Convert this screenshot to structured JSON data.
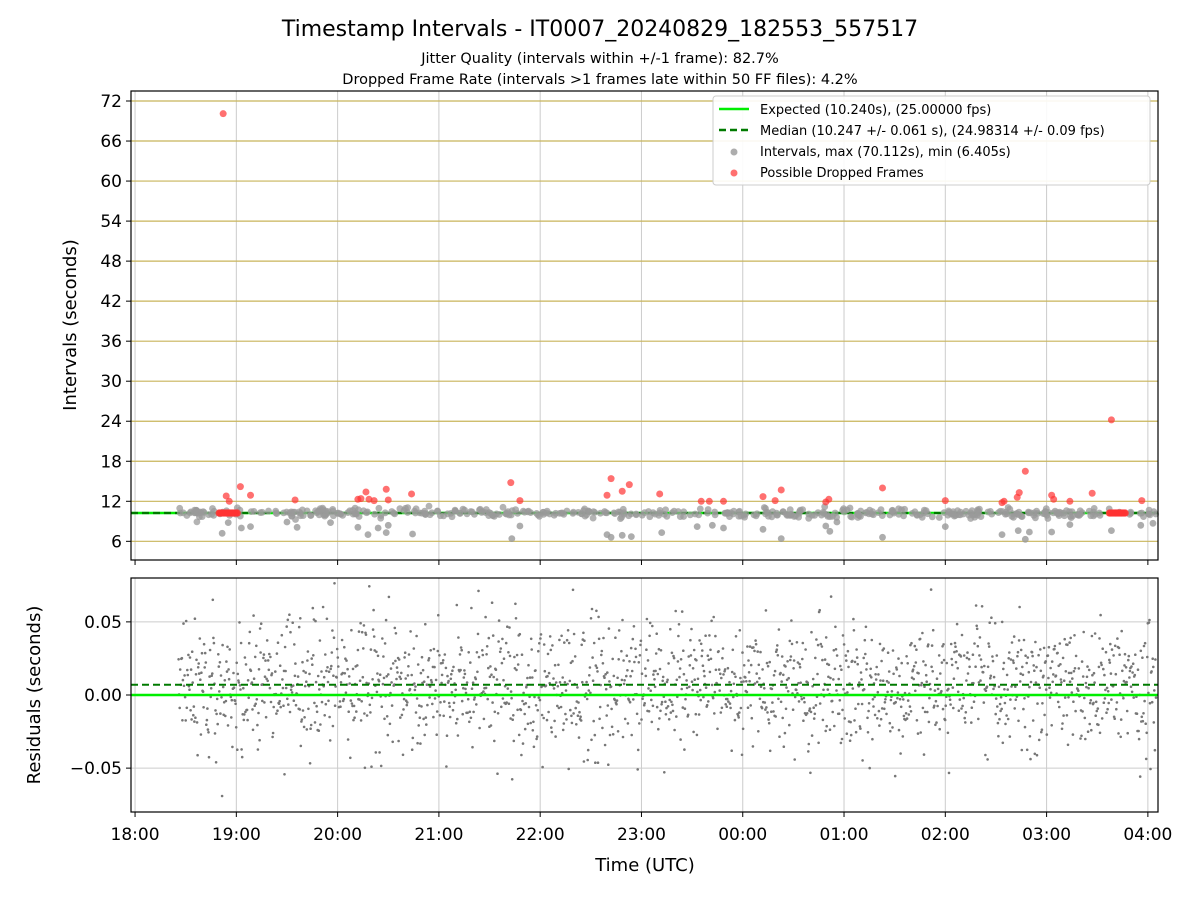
{
  "chart_data": [
    {
      "type": "scatter",
      "title": "Timestamp Intervals - IT0007_20240829_182553_557517",
      "subtitle_lines": [
        "Jitter Quality (intervals within +/-1 frame): 82.7%",
        "Dropped Frame Rate (intervals >1 frames late within 50 FF files): 4.2%"
      ],
      "ylabel": "Intervals (seconds)",
      "ylim": [
        3.2,
        73.5
      ],
      "yticks": [
        "6",
        "12",
        "18",
        "24",
        "30",
        "36",
        "42",
        "48",
        "54",
        "60",
        "66",
        "72"
      ],
      "ytick_values": [
        6,
        12,
        18,
        24,
        30,
        36,
        42,
        48,
        54,
        60,
        66,
        72
      ],
      "grid": "on",
      "hgrid_color": "#c8b45a",
      "vgrid_color": "#cccccc",
      "legend_placement": "top-right",
      "legend": [
        {
          "label": "Expected (10.240s), (25.00000 fps)",
          "kind": "line",
          "color": "#00ee00"
        },
        {
          "label": "Median (10.247 +/- 0.061 s), (24.98314 +/- 0.09 fps)",
          "kind": "dashed-line",
          "color": "#007a00"
        },
        {
          "label": "Intervals, max (70.112s), min (6.405s)",
          "kind": "marker",
          "color": "#999999"
        },
        {
          "label": "Possible Dropped Frames",
          "kind": "marker",
          "color": "#ff3333"
        }
      ],
      "expected_interval": 10.24,
      "median_interval": 10.247,
      "dropped_frames": [
        {
          "time_h": 18.87,
          "value": 70.1
        },
        {
          "time_h": 18.9,
          "value": 12.8
        },
        {
          "time_h": 18.93,
          "value": 12.0
        },
        {
          "time_h": 19.04,
          "value": 14.2
        },
        {
          "time_h": 19.14,
          "value": 12.9
        },
        {
          "time_h": 19.58,
          "value": 12.2
        },
        {
          "time_h": 20.2,
          "value": 12.3
        },
        {
          "time_h": 20.23,
          "value": 12.4
        },
        {
          "time_h": 20.28,
          "value": 13.4
        },
        {
          "time_h": 20.31,
          "value": 12.3
        },
        {
          "time_h": 20.36,
          "value": 12.1
        },
        {
          "time_h": 20.48,
          "value": 13.8
        },
        {
          "time_h": 20.5,
          "value": 12.2
        },
        {
          "time_h": 20.73,
          "value": 13.1
        },
        {
          "time_h": 21.71,
          "value": 14.8
        },
        {
          "time_h": 21.8,
          "value": 12.1
        },
        {
          "time_h": 22.66,
          "value": 12.9
        },
        {
          "time_h": 22.7,
          "value": 15.4
        },
        {
          "time_h": 22.81,
          "value": 13.5
        },
        {
          "time_h": 22.88,
          "value": 14.5
        },
        {
          "time_h": 23.18,
          "value": 13.1
        },
        {
          "time_h": 23.59,
          "value": 12.0
        },
        {
          "time_h": 23.67,
          "value": 12.0
        },
        {
          "time_h": 23.81,
          "value": 12.0
        },
        {
          "time_h": 24.2,
          "value": 12.7
        },
        {
          "time_h": 24.32,
          "value": 12.1
        },
        {
          "time_h": 24.38,
          "value": 13.7
        },
        {
          "time_h": 24.82,
          "value": 11.9
        },
        {
          "time_h": 24.85,
          "value": 12.3
        },
        {
          "time_h": 25.38,
          "value": 14.0
        },
        {
          "time_h": 26.0,
          "value": 12.1
        },
        {
          "time_h": 26.56,
          "value": 11.8
        },
        {
          "time_h": 26.58,
          "value": 12.0
        },
        {
          "time_h": 26.71,
          "value": 12.6
        },
        {
          "time_h": 26.73,
          "value": 13.3
        },
        {
          "time_h": 26.79,
          "value": 16.5
        },
        {
          "time_h": 27.05,
          "value": 12.9
        },
        {
          "time_h": 27.07,
          "value": 12.3
        },
        {
          "time_h": 27.23,
          "value": 12.0
        },
        {
          "time_h": 27.45,
          "value": 13.2
        },
        {
          "time_h": 27.64,
          "value": 24.2
        },
        {
          "time_h": 27.94,
          "value": 12.1
        }
      ],
      "dropped_frame_clusters": [
        {
          "time_start_h": 18.83,
          "time_end_h": 19.02,
          "value": 10.24
        },
        {
          "time_start_h": 27.62,
          "time_end_h": 27.78,
          "value": 10.24
        }
      ],
      "interval_outliers": [
        {
          "time_h": 18.86,
          "value": 7.2
        },
        {
          "time_h": 18.92,
          "value": 8.8
        },
        {
          "time_h": 19.05,
          "value": 8.0
        },
        {
          "time_h": 19.14,
          "value": 8.2
        },
        {
          "time_h": 19.5,
          "value": 8.9
        },
        {
          "time_h": 19.6,
          "value": 8.1
        },
        {
          "time_h": 19.93,
          "value": 8.8
        },
        {
          "time_h": 20.2,
          "value": 8.1
        },
        {
          "time_h": 20.3,
          "value": 7.0
        },
        {
          "time_h": 20.4,
          "value": 8.0
        },
        {
          "time_h": 20.48,
          "value": 7.3
        },
        {
          "time_h": 20.5,
          "value": 8.4
        },
        {
          "time_h": 20.74,
          "value": 7.1
        },
        {
          "time_h": 21.72,
          "value": 6.4
        },
        {
          "time_h": 21.8,
          "value": 8.3
        },
        {
          "time_h": 22.66,
          "value": 7.0
        },
        {
          "time_h": 22.7,
          "value": 6.6
        },
        {
          "time_h": 22.81,
          "value": 6.9
        },
        {
          "time_h": 22.9,
          "value": 6.7
        },
        {
          "time_h": 23.2,
          "value": 7.3
        },
        {
          "time_h": 23.55,
          "value": 8.2
        },
        {
          "time_h": 23.7,
          "value": 8.4
        },
        {
          "time_h": 23.81,
          "value": 8.0
        },
        {
          "time_h": 24.2,
          "value": 7.8
        },
        {
          "time_h": 24.38,
          "value": 6.4
        },
        {
          "time_h": 24.82,
          "value": 8.3
        },
        {
          "time_h": 24.86,
          "value": 7.5
        },
        {
          "time_h": 24.93,
          "value": 8.9
        },
        {
          "time_h": 25.38,
          "value": 6.6
        },
        {
          "time_h": 26.0,
          "value": 8.2
        },
        {
          "time_h": 26.56,
          "value": 7.0
        },
        {
          "time_h": 26.72,
          "value": 7.6
        },
        {
          "time_h": 26.79,
          "value": 6.3
        },
        {
          "time_h": 26.83,
          "value": 7.4
        },
        {
          "time_h": 27.05,
          "value": 7.4
        },
        {
          "time_h": 27.23,
          "value": 8.5
        },
        {
          "time_h": 27.64,
          "value": 7.6
        },
        {
          "time_h": 27.93,
          "value": 8.4
        },
        {
          "time_h": 28.05,
          "value": 8.7
        }
      ],
      "interval_spread_around": [
        9.4,
        11.2
      ],
      "time_start_h": 18.43,
      "time_end_h": 28.08,
      "scatter_color": "#999999",
      "dropped_color": "#ff3333"
    },
    {
      "type": "scatter",
      "xlabel": "Time (UTC)",
      "ylabel": "Residuals (seconds)",
      "ylim": [
        -0.08,
        0.08
      ],
      "yticks": [
        "−0.05",
        "0.00",
        "0.05"
      ],
      "ytick_values": [
        -0.05,
        0.0,
        0.05
      ],
      "xlim": [
        17.96,
        28.1
      ],
      "xticks": [
        "18:00",
        "19:00",
        "20:00",
        "21:00",
        "22:00",
        "23:00",
        "00:00",
        "01:00",
        "02:00",
        "03:00",
        "04:00"
      ],
      "xtick_values": [
        18,
        19,
        20,
        21,
        22,
        23,
        24,
        25,
        26,
        27,
        28
      ],
      "grid": "on",
      "expected_residual": 0.0,
      "median_residual": 0.007,
      "residual_std": 0.023,
      "residual_count": 1800,
      "time_start_h": 18.43,
      "time_end_h": 28.08,
      "marker_color": "#777777",
      "expected_color": "#00ee00",
      "median_color": "#007a00"
    }
  ]
}
